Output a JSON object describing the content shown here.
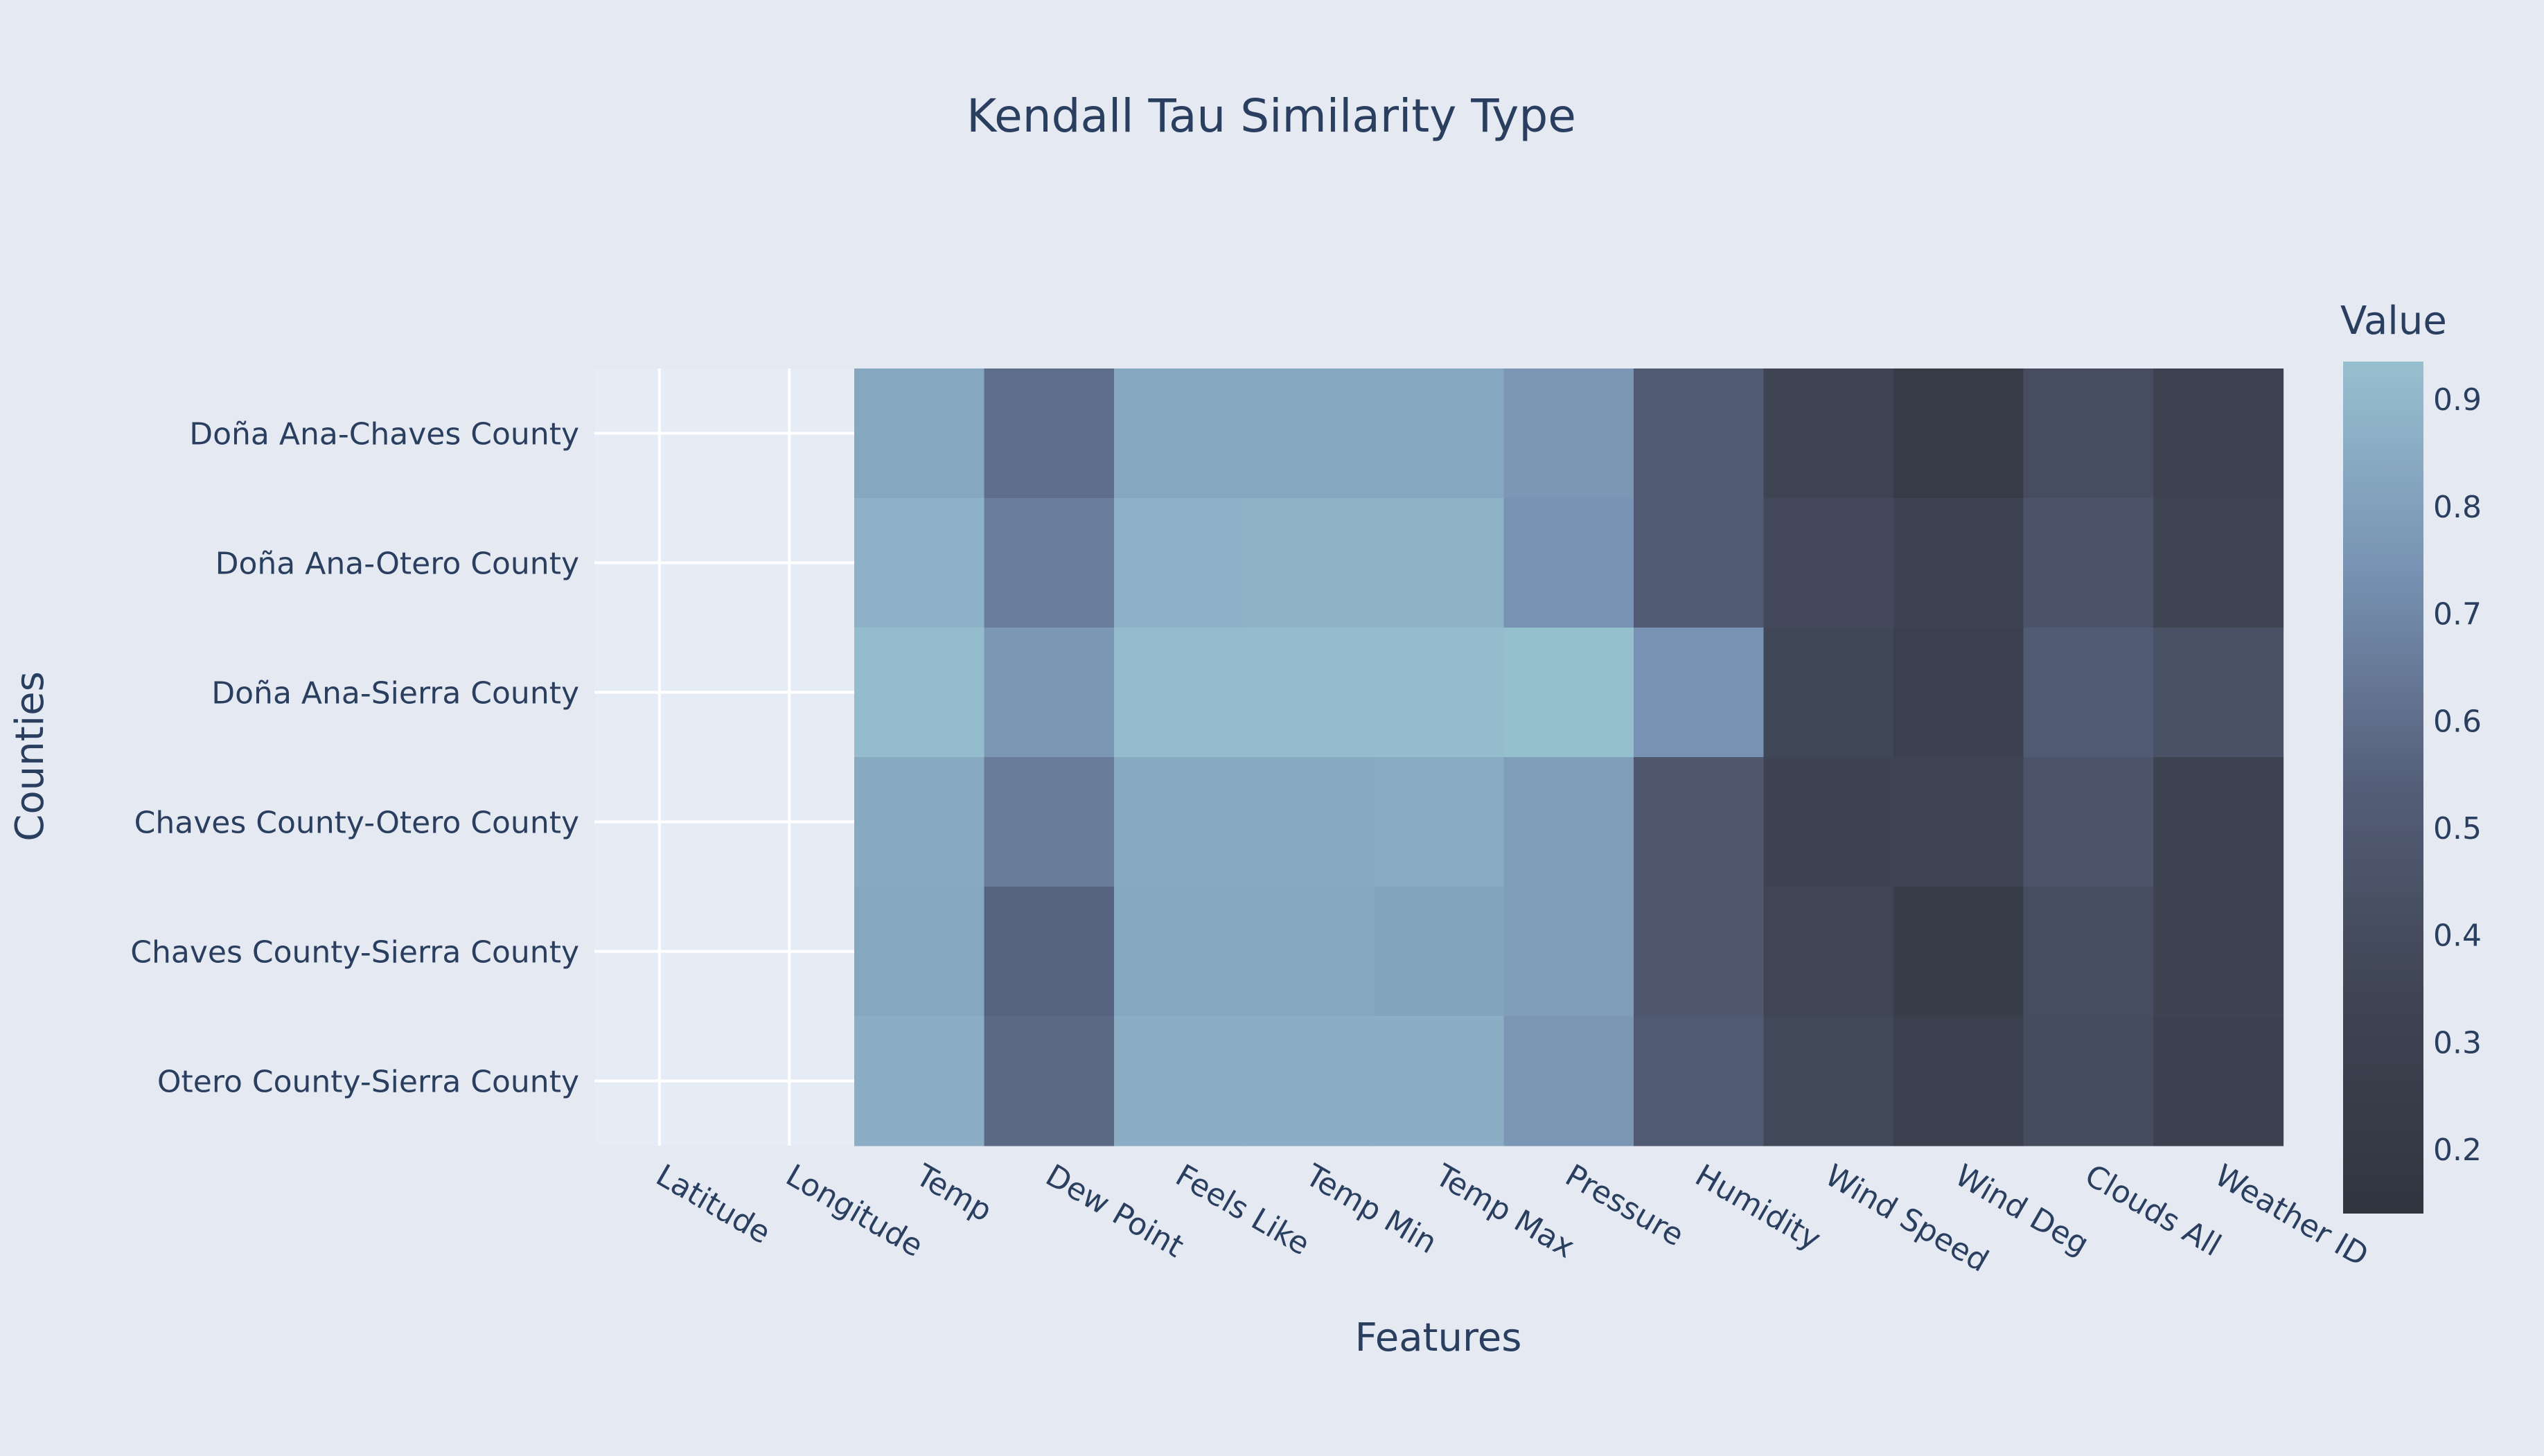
{
  "chart_data": {
    "type": "heatmap",
    "title": "Kendall Tau Similarity Type",
    "xlabel": "Features",
    "ylabel": "Counties",
    "x": [
      "Latitude",
      "Longitude",
      "Temp",
      "Dew Point",
      "Feels Like",
      "Temp Min",
      "Temp Max",
      "Pressure",
      "Humidity",
      "Wind Speed",
      "Wind Deg",
      "Clouds All",
      "Weather ID"
    ],
    "y": [
      "Doña Ana-Chaves County",
      "Doña Ana-Otero County",
      "Doña Ana-Sierra County",
      "Chaves County-Otero County",
      "Chaves County-Sierra County",
      "Otero County-Sierra County"
    ],
    "z": [
      [
        null,
        null,
        0.83,
        0.6,
        0.83,
        0.83,
        0.83,
        0.76,
        0.51,
        0.34,
        0.22,
        0.41,
        0.31
      ],
      [
        null,
        null,
        0.87,
        0.66,
        0.87,
        0.88,
        0.88,
        0.74,
        0.51,
        0.38,
        0.32,
        0.45,
        0.34
      ],
      [
        null,
        null,
        0.92,
        0.76,
        0.92,
        0.92,
        0.92,
        0.93,
        0.74,
        0.36,
        0.29,
        0.51,
        0.44
      ],
      [
        null,
        null,
        0.84,
        0.65,
        0.84,
        0.84,
        0.85,
        0.79,
        0.49,
        0.32,
        0.34,
        0.46,
        0.33
      ],
      [
        null,
        null,
        0.83,
        0.56,
        0.83,
        0.83,
        0.82,
        0.79,
        0.49,
        0.35,
        0.23,
        0.41,
        0.32
      ],
      [
        null,
        null,
        0.86,
        0.58,
        0.86,
        0.86,
        0.86,
        0.76,
        0.51,
        0.37,
        0.29,
        0.4,
        0.3
      ]
    ],
    "colorbar": {
      "title": "Value",
      "min": 0.14,
      "max": 0.935,
      "ticks": [
        0.2,
        0.3,
        0.4,
        0.5,
        0.6,
        0.7,
        0.8,
        0.9
      ],
      "colorscale": [
        [
          0,
          "#303540"
        ],
        [
          0.25,
          "#3e4452"
        ],
        [
          0.5,
          "#545e78"
        ],
        [
          0.75,
          "#7791b2"
        ],
        [
          1,
          "#97c0cf"
        ]
      ]
    },
    "missing_color": "#e5ecf6",
    "grid": true
  }
}
